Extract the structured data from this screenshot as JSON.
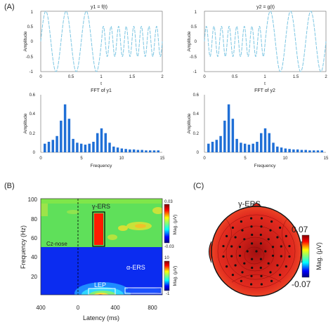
{
  "figure": {
    "panel_labels": {
      "a": "(A)",
      "b": "(B)",
      "c": "(C)"
    }
  },
  "colors": {
    "signal": "#7cc6e3",
    "bars": "#1f6fd6",
    "axis": "#555555",
    "heat_low": "#0b2cf0",
    "heat_mid": "#5fe05a",
    "heat_high": "#ff1a00",
    "head": "#d8261c"
  },
  "chart_data": [
    {
      "type": "line",
      "title": "y1 = f(t)",
      "xlabel": "t",
      "ylabel": "Amplitude",
      "xlim": [
        0,
        2
      ],
      "ylim": [
        -1,
        1
      ],
      "x_ticks": [
        "0",
        "0.5",
        "1",
        "1.5",
        "2"
      ],
      "y_ticks": [
        "1",
        "0.5",
        "0",
        "-0.5",
        "-1"
      ],
      "segments": [
        {
          "t_start": 0,
          "t_end": 1,
          "frequency_hz": 3,
          "amplitude": 1.0
        },
        {
          "t_start": 1,
          "t_end": 2,
          "frequency_hz": 8,
          "amplitude": 0.5
        }
      ]
    },
    {
      "type": "line",
      "title": "y2 = g(t)",
      "xlabel": "t",
      "ylabel": "Amplitude",
      "xlim": [
        0,
        2
      ],
      "ylim": [
        -1,
        1
      ],
      "x_ticks": [
        "0",
        "0.5",
        "1",
        "1.5",
        "2"
      ],
      "y_ticks": [
        "1",
        "0.5",
        "0",
        "-0.5",
        "-1"
      ],
      "segments": [
        {
          "t_start": 0,
          "t_end": 1,
          "frequency_hz": 8,
          "amplitude": 0.5
        },
        {
          "t_start": 1,
          "t_end": 2,
          "frequency_hz": 3,
          "amplitude": 1.0
        }
      ]
    },
    {
      "type": "bar",
      "title": "FFT of y1",
      "xlabel": "Frequency",
      "ylabel": "Amplitude",
      "xlim": [
        0,
        15
      ],
      "ylim": [
        0,
        0.6
      ],
      "x_ticks": [
        "0",
        "5",
        "10",
        "15"
      ],
      "y_ticks": [
        "0.6",
        "0.4",
        "0.2",
        "0"
      ],
      "x": [
        0.5,
        1,
        1.5,
        2,
        2.5,
        3,
        3.5,
        4,
        4.5,
        5,
        5.5,
        6,
        6.5,
        7,
        7.5,
        8,
        8.5,
        9,
        9.5,
        10,
        10.5,
        11,
        11.5,
        12,
        12.5,
        13,
        13.5,
        14,
        14.5
      ],
      "values": [
        0.09,
        0.11,
        0.13,
        0.17,
        0.33,
        0.5,
        0.35,
        0.14,
        0.1,
        0.09,
        0.08,
        0.09,
        0.11,
        0.2,
        0.25,
        0.2,
        0.1,
        0.06,
        0.05,
        0.04,
        0.035,
        0.03,
        0.03,
        0.025,
        0.025,
        0.02,
        0.02,
        0.02,
        0.02
      ]
    },
    {
      "type": "bar",
      "title": "FFT of y2",
      "xlabel": "Frequency",
      "ylabel": "Amplitude",
      "xlim": [
        0,
        15
      ],
      "ylim": [
        0,
        0.6
      ],
      "x_ticks": [
        "0",
        "5",
        "10",
        "15"
      ],
      "y_ticks": [
        "0.6",
        "0.4",
        "0.2",
        "0"
      ],
      "x": [
        0.5,
        1,
        1.5,
        2,
        2.5,
        3,
        3.5,
        4,
        4.5,
        5,
        5.5,
        6,
        6.5,
        7,
        7.5,
        8,
        8.5,
        9,
        9.5,
        10,
        10.5,
        11,
        11.5,
        12,
        12.5,
        13,
        13.5,
        14,
        14.5
      ],
      "values": [
        0.09,
        0.11,
        0.13,
        0.17,
        0.33,
        0.5,
        0.35,
        0.14,
        0.1,
        0.09,
        0.08,
        0.09,
        0.11,
        0.2,
        0.25,
        0.2,
        0.1,
        0.06,
        0.05,
        0.04,
        0.035,
        0.03,
        0.03,
        0.025,
        0.025,
        0.02,
        0.02,
        0.02,
        0.02
      ]
    },
    {
      "type": "heatmap",
      "xlabel": "Latency (ms)",
      "ylabel": "Frequency (Hz)",
      "xlim": [
        -400,
        900
      ],
      "ylim": [
        0,
        100
      ],
      "x_ticks": [
        "400",
        "0",
        "400",
        "800"
      ],
      "y_ticks": [
        "100",
        "80",
        "60",
        "40",
        "20"
      ],
      "annotations": {
        "gamma": "γ-ERS",
        "alpha": "α-ERS",
        "lep": "LEP",
        "channel": "Cz-nose"
      },
      "colorbars": [
        {
          "label": "Mag. (μV)",
          "max": "0.03",
          "min": "-0.03",
          "freq_range_hz": [
            50,
            100
          ]
        },
        {
          "label": "Mag. (μV)",
          "max": "10",
          "min": "-1",
          "freq_range_hz": [
            0,
            50
          ]
        }
      ],
      "regions": [
        {
          "name": "gamma-ERS",
          "latency_ms": [
            160,
            290
          ],
          "freq_hz": [
            58,
            86
          ]
        },
        {
          "name": "LEP",
          "latency_ms": [
            130,
            430
          ],
          "freq_hz": [
            1,
            10
          ]
        },
        {
          "name": "alpha-ERS",
          "latency_ms": [
            550,
            900
          ],
          "freq_hz": [
            7,
            12
          ]
        }
      ],
      "event_onset_ms": 0
    },
    {
      "type": "other",
      "title": "γ-ERS",
      "description": "scalp topography",
      "colorbar": {
        "label": "Mag. (μV)",
        "max": "0.07",
        "min": "-0.07"
      }
    }
  ]
}
